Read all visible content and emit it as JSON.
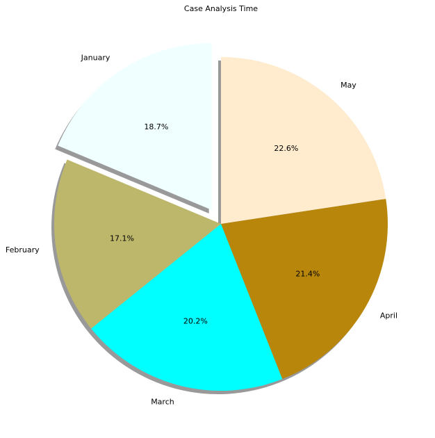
{
  "chart_data": {
    "type": "pie",
    "title": "Case Analysis Time",
    "categories": [
      "January",
      "February",
      "March",
      "April",
      "May"
    ],
    "values": [
      18.7,
      17.1,
      20.2,
      21.4,
      22.6
    ],
    "percent_labels": [
      "18.7%",
      "17.1%",
      "20.2%",
      "21.4%",
      "22.6%"
    ],
    "colors": [
      "#f0ffff",
      "#bdb76b",
      "#00ffff",
      "#b8860b",
      "#ffebcd"
    ],
    "explode": [
      0.1,
      0,
      0,
      0,
      0
    ],
    "start_angle_deg": 90,
    "direction": "counterclockwise",
    "shadow": true,
    "legend": "none"
  }
}
